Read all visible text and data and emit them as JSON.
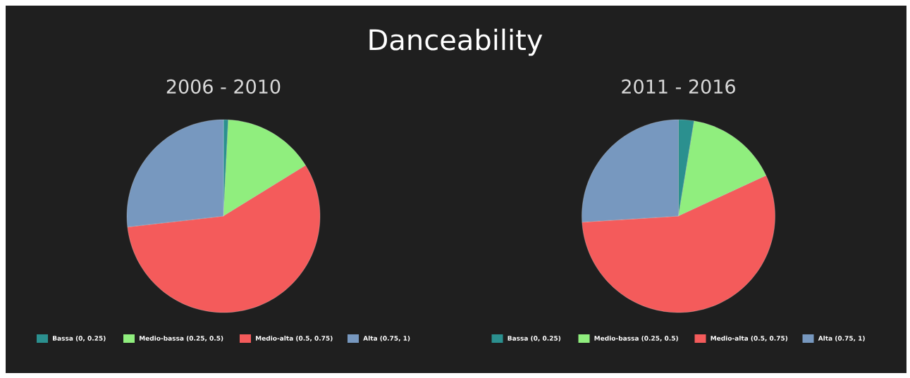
{
  "chart_data": [
    {
      "type": "pie",
      "title": "Danceability",
      "subtitle": "2006 - 2010",
      "categories": [
        "Bassa (0, 0.25)",
        "Medio-bassa (0.25, 0.5)",
        "Medio-alta (0.5, 0.75)",
        "Alta (0.75, 1)"
      ],
      "values": [
        0.8,
        15.4,
        57.0,
        26.8
      ],
      "colors": [
        "#2b908f",
        "#90ee7e",
        "#f45b5b",
        "#7798bf"
      ],
      "legend": "bottom"
    },
    {
      "type": "pie",
      "subtitle": "2011 - 2016",
      "categories": [
        "Bassa (0, 0.25)",
        "Medio-bassa (0.25, 0.5)",
        "Medio-alta (0.5, 0.75)",
        "Alta (0.75, 1)"
      ],
      "values": [
        2.6,
        15.5,
        55.9,
        26.0
      ],
      "colors": [
        "#2b908f",
        "#90ee7e",
        "#f45b5b",
        "#7798bf"
      ],
      "legend": "bottom"
    }
  ]
}
